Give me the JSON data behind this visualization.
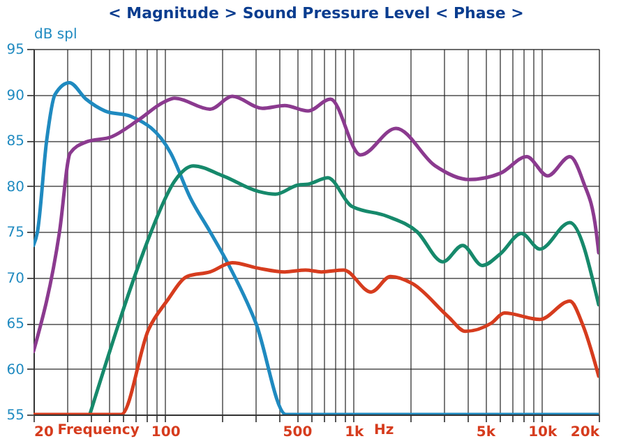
{
  "chart_data": {
    "type": "line",
    "title": "< Magnitude >    Sound Pressure Level    < Phase >",
    "xlabel": "Frequency",
    "ylabel": "dB spl",
    "annotations": [
      "Hz"
    ],
    "log": "x",
    "grid": true,
    "marker": "none",
    "line_style": "solid",
    "xlim": [
      20,
      20000
    ],
    "ylim": [
      55,
      95
    ],
    "xticks": [
      20,
      {
        "value": 30,
        "label": null
      },
      {
        "value": 40,
        "label": null
      },
      {
        "value": 50,
        "label": null
      },
      {
        "value": 60,
        "label": null
      },
      {
        "value": 70,
        "label": null
      },
      {
        "value": 80,
        "label": null
      },
      {
        "value": 90,
        "label": null
      },
      100,
      {
        "value": 200,
        "label": null
      },
      {
        "value": 300,
        "label": null
      },
      {
        "value": 400,
        "label": null
      },
      500,
      {
        "value": 600,
        "label": null
      },
      {
        "value": 700,
        "label": null
      },
      {
        "value": 800,
        "label": null
      },
      {
        "value": 900,
        "label": null
      },
      {
        "value": 1000,
        "label": "1k"
      },
      {
        "value": 2000,
        "label": null
      },
      {
        "value": 3000,
        "label": null
      },
      {
        "value": 4000,
        "label": null
      },
      {
        "value": 5000,
        "label": "5k"
      },
      {
        "value": 6000,
        "label": null
      },
      {
        "value": 7000,
        "label": null
      },
      {
        "value": 8000,
        "label": null
      },
      {
        "value": 9000,
        "label": null
      },
      {
        "value": 10000,
        "label": "10k"
      },
      {
        "value": 20000,
        "label": "20k"
      }
    ],
    "yticks": [
      55,
      60,
      65,
      70,
      75,
      80,
      85,
      90,
      95
    ],
    "series": [
      {
        "color": "#1f8ac0",
        "x": [
          20,
          21,
          23.5,
          26,
          31,
          38,
          48,
          66,
          107,
          136,
          173,
          213,
          303,
          438,
          20000
        ],
        "values": [
          73.5,
          75,
          85,
          90,
          91.3,
          89.5,
          88.2,
          87.6,
          83.6,
          78.7,
          75,
          71.7,
          65,
          55,
          55
        ]
      },
      {
        "color": "#8b3a8f",
        "x": [
          20,
          27.5,
          31.3,
          37.9,
          52.2,
          71.9,
          98.9,
          112,
          173,
          227,
          328,
          431,
          574,
          754,
          1089,
          1678,
          2710,
          4110,
          6030,
          8300,
          10720,
          14060,
          16530,
          19400,
          20000
        ],
        "values": [
          61.9,
          75,
          83.6,
          84.8,
          85.4,
          87.2,
          89.2,
          89.6,
          88.4,
          89.8,
          88.5,
          88.8,
          88.2,
          89.5,
          83.4,
          86.3,
          82.2,
          80.7,
          81.4,
          83.2,
          81.1,
          83.2,
          80.5,
          75,
          72.7
        ]
      },
      {
        "color": "#16896b",
        "x": [
          39.8,
          84.3,
          91.4,
          112,
          141,
          203,
          313,
          385,
          506,
          574,
          730,
          974,
          1500,
          2170,
          2980,
          3790,
          4820,
          6030,
          7780,
          9740,
          14060,
          20000
        ],
        "values": [
          55,
          75,
          76.8,
          80.5,
          82.2,
          81.1,
          79.4,
          79.1,
          80.1,
          80.2,
          80.9,
          77.8,
          76.7,
          75,
          71.7,
          73.5,
          71.3,
          72.6,
          74.8,
          73.1,
          76.0,
          67
        ]
      },
      {
        "color": "#d63c1e",
        "x": [
          20,
          58.4,
          81.6,
          102,
          131,
          173,
          227,
          313,
          431,
          556,
          674,
          885,
          1240,
          1570,
          2060,
          3180,
          3920,
          5390,
          6320,
          9740,
          14060,
          16530,
          20000
        ],
        "values": [
          55,
          55,
          64.3,
          67.4,
          70.1,
          70.6,
          71.6,
          71.0,
          70.6,
          70.8,
          70.6,
          70.8,
          68.4,
          70.1,
          69.3,
          65.7,
          64.1,
          65.0,
          66.1,
          65.4,
          67.4,
          64.7,
          59.2
        ]
      }
    ]
  }
}
